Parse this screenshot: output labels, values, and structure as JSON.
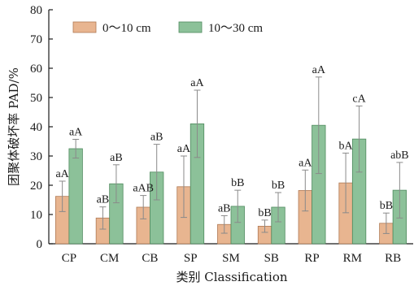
{
  "chart_data": {
    "type": "bar",
    "xlabel": "类别 Classification",
    "ylabel": "团聚体破坏率 PAD/%",
    "ylim": [
      0,
      80
    ],
    "yticks": [
      0,
      10,
      20,
      30,
      40,
      50,
      60,
      70,
      80
    ],
    "categories": [
      "CP",
      "CM",
      "CB",
      "SP",
      "SM",
      "SB",
      "RP",
      "RM",
      "RB"
    ],
    "legend_position": "top-left",
    "grid": false,
    "series": [
      {
        "name": "0～10 cm",
        "color": "#e8b590",
        "edge_color": "#b07a55",
        "values": [
          16.2,
          8.8,
          12.5,
          19.5,
          6.6,
          6.0,
          18.2,
          20.8,
          7.0
        ],
        "errors": [
          5.2,
          3.8,
          4.0,
          10.5,
          3.0,
          2.1,
          7.0,
          10.2,
          3.5
        ],
        "labels": [
          "aA",
          "aB",
          "aAB",
          "aA",
          "aB",
          "bB",
          "aA",
          "bA",
          "bB"
        ]
      },
      {
        "name": "10～30 cm",
        "color": "#8cc199",
        "edge_color": "#4f8a5e",
        "values": [
          32.5,
          20.5,
          24.5,
          41.0,
          12.8,
          12.5,
          40.5,
          35.8,
          18.3
        ],
        "errors": [
          3.2,
          6.5,
          9.5,
          11.5,
          5.5,
          5.0,
          16.5,
          11.3,
          9.5
        ],
        "labels": [
          "aA",
          "aB",
          "aB",
          "aA",
          "bB",
          "bB",
          "aA",
          "cA",
          "abB"
        ]
      }
    ]
  }
}
